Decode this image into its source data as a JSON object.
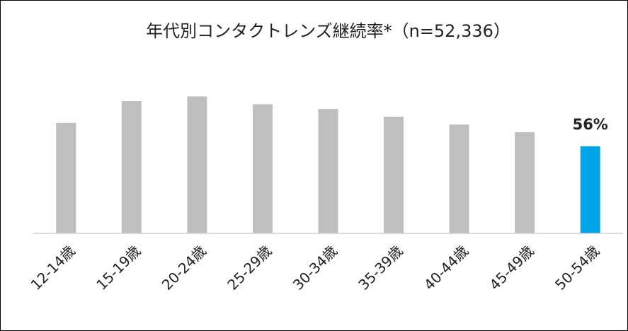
{
  "chart_data": {
    "type": "bar",
    "title": "年代別コンタクトレンズ継続率*（n=52,336）",
    "categories": [
      "12-14歳",
      "15-19歳",
      "20-24歳",
      "25-29歳",
      "30-34歳",
      "35-39歳",
      "40-44歳",
      "45-49歳",
      "50-54歳"
    ],
    "values": [
      71,
      85,
      88,
      83,
      80,
      75,
      70,
      65,
      56
    ],
    "data_labels": [
      "",
      "",
      "",
      "",
      "",
      "",
      "",
      "",
      "56%"
    ],
    "highlight_index": 8,
    "ylim": [
      0,
      100
    ],
    "grid": false,
    "legend": "none",
    "colors": {
      "bar": "#bfbfbf",
      "highlight": "#00a5e8",
      "axis": "#d0d0d0",
      "text": "#222222"
    }
  }
}
